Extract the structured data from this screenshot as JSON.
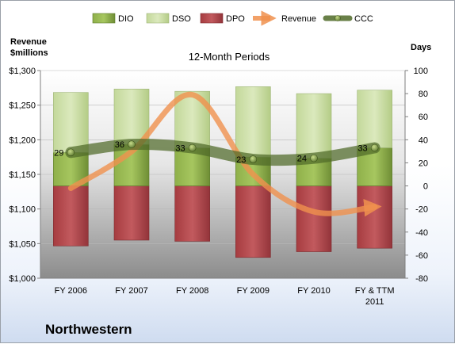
{
  "chart_data": {
    "type": "bar",
    "title": "12-Month Periods",
    "company": "Northwestern",
    "ylabel_left": [
      "Revenue",
      "$millions"
    ],
    "ylabel_right": "Days",
    "categories": [
      [
        "FY 2006"
      ],
      [
        "FY 2007"
      ],
      [
        "FY 2008"
      ],
      [
        "FY 2009"
      ],
      [
        "FY 2010"
      ],
      [
        "FY & TTM",
        "2011"
      ]
    ],
    "left_axis": {
      "ylim": [
        1000,
        1300
      ],
      "ticks": [
        "$1,000",
        "$1,050",
        "$1,100",
        "$1,150",
        "$1,200",
        "$1,250",
        "$1,300"
      ],
      "values": [
        1000,
        1050,
        1100,
        1150,
        1200,
        1250,
        1300
      ]
    },
    "right_axis": {
      "ylim": [
        -80,
        100
      ],
      "ticks": [
        "-80",
        "-60",
        "-40",
        "-20",
        "0",
        "20",
        "40",
        "60",
        "80",
        "100"
      ],
      "values": [
        -80,
        -60,
        -40,
        -20,
        0,
        20,
        40,
        60,
        80,
        100
      ]
    },
    "series": [
      {
        "name": "DIO",
        "kind": "stacked-bar-positive",
        "axis": "right",
        "color": "#7a9a3c",
        "values": [
          29,
          36,
          33,
          25,
          24,
          33
        ]
      },
      {
        "name": "DSO",
        "kind": "stacked-bar-positive",
        "axis": "right",
        "color": "#c9dc9c",
        "values": [
          52,
          48,
          49,
          61,
          56,
          50
        ]
      },
      {
        "name": "DPO",
        "kind": "bar-negative",
        "axis": "right",
        "color": "#b5474b",
        "values": [
          -52,
          -47,
          -48,
          -62,
          -57,
          -54
        ]
      },
      {
        "name": "Revenue",
        "kind": "line",
        "axis": "left",
        "color": "#f0914e",
        "values": [
          1130,
          1183,
          1265,
          1150,
          1096,
          1103
        ]
      },
      {
        "name": "CCC",
        "kind": "line",
        "axis": "right",
        "color": "#5e7a32",
        "values": [
          29,
          36,
          33,
          23,
          24,
          33
        ]
      }
    ],
    "ccc_labels": [
      "29",
      "36",
      "33",
      "23",
      "24",
      "33"
    ],
    "legend_position": "top",
    "plot_background": "gradient gray"
  }
}
